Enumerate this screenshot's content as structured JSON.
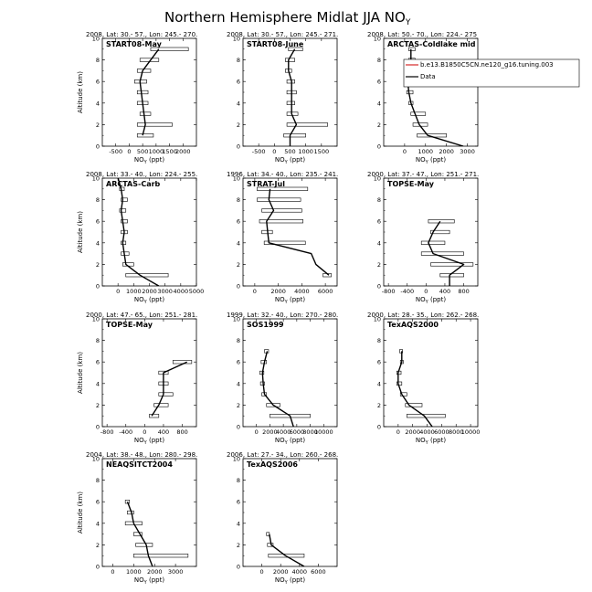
{
  "figure": {
    "title_main": "Northern Hemisphere Midlat JJA NO",
    "title_sub": "Y"
  },
  "legend": {
    "model_label": "b.e13.B1850C5CN.ne120_g16.tuning.003",
    "data_label": "Data",
    "model_color": "#d62728",
    "data_color": "#000000"
  },
  "axis_labels": {
    "y_label": "Altitude (km)",
    "x_label_main": "NO",
    "x_label_sub": "Y",
    "x_label_unit": " (ppt)"
  },
  "chart_data": [
    {
      "type": "line",
      "header": "2008, Lat:  30.- 57., Lon: 245.- 270.",
      "title": "START08-May",
      "xlim": [
        -1000,
        2500
      ],
      "xticks": [
        -500,
        0,
        500,
        1000,
        1500,
        2000
      ],
      "ylim": [
        0,
        10
      ],
      "yticks": [
        0,
        2,
        4,
        6,
        8,
        10
      ],
      "alt": [
        1,
        2,
        3,
        4,
        5,
        6,
        7,
        8,
        9
      ],
      "mean": [
        500,
        600,
        550,
        500,
        450,
        400,
        500,
        800,
        1100
      ],
      "bar_lo": [
        300,
        300,
        400,
        300,
        300,
        200,
        300,
        400,
        800
      ],
      "bar_hi": [
        900,
        1600,
        800,
        700,
        700,
        650,
        800,
        1100,
        2200
      ]
    },
    {
      "type": "line",
      "header": "2008, Lat:  30.- 57., Lon: 245.- 271.",
      "title": "START08-June",
      "xlim": [
        -1000,
        2000
      ],
      "xticks": [
        -500,
        0,
        500,
        1000,
        1500
      ],
      "ylim": [
        0,
        10
      ],
      "yticks": [
        0,
        2,
        4,
        6,
        8,
        10
      ],
      "alt": [
        0,
        1,
        2,
        3,
        4,
        5,
        6,
        7,
        8,
        9
      ],
      "mean": [
        500,
        500,
        700,
        550,
        550,
        550,
        550,
        450,
        450,
        650
      ],
      "bar_lo": [
        null,
        300,
        400,
        400,
        400,
        400,
        400,
        350,
        350,
        450
      ],
      "bar_hi": [
        null,
        1000,
        1700,
        750,
        650,
        700,
        650,
        550,
        650,
        900
      ]
    },
    {
      "type": "line",
      "header": "2008, Lat:  50.- 70., Lon: 224.- 275",
      "title": "ARCTAS-Coldlake mid",
      "xlim": [
        -1000,
        3500
      ],
      "xticks": [
        0,
        1000,
        2000,
        3000
      ],
      "ylim": [
        0,
        10
      ],
      "yticks": [
        0,
        2,
        4,
        6,
        8,
        10
      ],
      "alt": [
        0,
        1,
        2,
        3,
        4,
        5,
        6,
        7,
        8,
        9
      ],
      "mean": [
        2800,
        1100,
        700,
        500,
        300,
        200,
        150,
        200,
        300,
        300
      ],
      "bar_lo": [
        null,
        600,
        400,
        300,
        200,
        100,
        100,
        100,
        200,
        200
      ],
      "bar_hi": [
        null,
        2000,
        1100,
        1000,
        400,
        400,
        300,
        400,
        500,
        500
      ]
    },
    {
      "type": "line",
      "header": "2008, Lat:  33.- 40., Lon: 224.- 255.",
      "title": "ARCTAS-Carb",
      "xlim": [
        -1000,
        5000
      ],
      "xticks": [
        0,
        1000,
        2000,
        3000,
        4000,
        5000
      ],
      "ylim": [
        0,
        10
      ],
      "yticks": [
        0,
        2,
        4,
        6,
        8,
        10
      ],
      "alt": [
        0,
        1,
        2,
        3,
        4,
        5,
        6,
        7,
        8,
        9,
        10
      ],
      "mean": [
        2600,
        1400,
        500,
        400,
        300,
        400,
        300,
        200,
        300,
        200,
        0
      ],
      "bar_lo": [
        null,
        500,
        300,
        200,
        200,
        200,
        200,
        100,
        200,
        100,
        null
      ],
      "bar_hi": [
        null,
        3200,
        1000,
        700,
        500,
        600,
        600,
        500,
        600,
        400,
        null
      ]
    },
    {
      "type": "line",
      "header": "1996, Lat:  34.- 40., Lon: 235.- 241.",
      "title": "STRAT-Jul",
      "xlim": [
        -1000,
        7000
      ],
      "xticks": [
        0,
        2000,
        4000,
        6000
      ],
      "ylim": [
        0,
        10
      ],
      "yticks": [
        0,
        2,
        4,
        6,
        8,
        10
      ],
      "alt": [
        1,
        2,
        3,
        4,
        5,
        6,
        7,
        8,
        9
      ],
      "mean": [
        6300,
        5200,
        4800,
        1200,
        1100,
        1000,
        1600,
        1200,
        1300
      ],
      "bar_lo": [
        5800,
        null,
        null,
        800,
        600,
        400,
        600,
        200,
        200
      ],
      "bar_hi": [
        6500,
        null,
        null,
        4300,
        1500,
        4100,
        4000,
        3900,
        4500
      ]
    },
    {
      "type": "line",
      "header": "2000, Lat:  37.- 47., Lon: 251.- 271.",
      "title": "TOPSE-May",
      "xlim": [
        -900,
        1100
      ],
      "xticks": [
        -800,
        -400,
        0,
        400,
        800
      ],
      "ylim": [
        0,
        10
      ],
      "yticks": [
        0,
        2,
        4,
        6,
        8,
        10
      ],
      "alt": [
        0,
        1,
        2,
        3,
        4,
        5,
        6
      ],
      "mean": [
        500,
        500,
        800,
        150,
        50,
        150,
        300
      ],
      "bar_lo": [
        null,
        300,
        100,
        -100,
        -100,
        100,
        50
      ],
      "bar_hi": [
        null,
        800,
        1000,
        800,
        400,
        500,
        600
      ]
    },
    {
      "type": "line",
      "header": "2000, Lat:  47.- 65., Lon: 251.- 281.",
      "title": "TOPSE-May",
      "xlim": [
        -900,
        1100
      ],
      "xticks": [
        -800,
        -400,
        0,
        400,
        800
      ],
      "ylim": [
        0,
        10
      ],
      "yticks": [
        0,
        2,
        4,
        6,
        8,
        10
      ],
      "alt": [
        1,
        2,
        3,
        4,
        5,
        6
      ],
      "mean": [
        150,
        300,
        400,
        400,
        400,
        900
      ],
      "bar_lo": [
        100,
        200,
        300,
        300,
        300,
        600
      ],
      "bar_hi": [
        300,
        500,
        600,
        500,
        500,
        1000
      ]
    },
    {
      "type": "line",
      "header": "1999, Lat:  32.- 40., Lon: 270.- 280.",
      "title": "SOS1999",
      "xlim": [
        -2000,
        12000
      ],
      "xticks": [
        0,
        2000,
        4000,
        6000,
        8000,
        10000
      ],
      "ylim": [
        0,
        10
      ],
      "yticks": [
        0,
        2,
        4,
        6,
        8,
        10
      ],
      "alt": [
        0,
        1,
        2,
        3,
        4,
        5,
        6,
        7
      ],
      "mean": [
        5500,
        5000,
        2500,
        1200,
        1000,
        900,
        1200,
        1600
      ],
      "bar_lo": [
        null,
        2000,
        1500,
        800,
        600,
        500,
        700,
        1200
      ],
      "bar_hi": [
        null,
        8000,
        3500,
        1500,
        1200,
        1100,
        1500,
        1800
      ]
    },
    {
      "type": "line",
      "header": "2000, Lat:  28.- 35., Lon: 262.- 268.",
      "title": "TexAQS2000",
      "xlim": [
        -2000,
        11000
      ],
      "xticks": [
        0,
        2000,
        4000,
        6000,
        8000,
        10000
      ],
      "ylim": [
        0,
        10
      ],
      "yticks": [
        0,
        2,
        4,
        6,
        8,
        10
      ],
      "alt": [
        0,
        1,
        2,
        3,
        4,
        5,
        6,
        7
      ],
      "mean": [
        4700,
        3600,
        1500,
        500,
        0,
        0,
        500,
        500
      ],
      "bar_lo": [
        null,
        1200,
        1000,
        300,
        -200,
        -200,
        300,
        200
      ],
      "bar_hi": [
        null,
        6500,
        3300,
        1200,
        500,
        400,
        700,
        600
      ]
    },
    {
      "type": "line",
      "header": "2004, Lat:  38.- 48., Lon: 280.- 298.",
      "title": "NEAQSITCT2004",
      "xlim": [
        -500,
        4000
      ],
      "xticks": [
        0,
        1000,
        2000,
        3000
      ],
      "ylim": [
        0,
        10
      ],
      "yticks": [
        0,
        2,
        4,
        6,
        8,
        10
      ],
      "alt": [
        0,
        1,
        2,
        3,
        4,
        5,
        6
      ],
      "mean": [
        1900,
        1700,
        1600,
        1300,
        1000,
        900,
        700
      ],
      "bar_lo": [
        null,
        1000,
        1100,
        1000,
        600,
        700,
        600
      ],
      "bar_hi": [
        null,
        3600,
        1900,
        1400,
        1400,
        1000,
        800
      ]
    },
    {
      "type": "line",
      "header": "2006, Lat:  27.- 34., Lon: 260.- 268.",
      "title": "TexAQS2006",
      "xlim": [
        -2000,
        8000
      ],
      "xticks": [
        0,
        2000,
        4000,
        6000
      ],
      "ylim": [
        0,
        10
      ],
      "yticks": [
        0,
        2,
        4,
        6,
        8,
        10
      ],
      "alt": [
        0,
        1,
        2,
        3
      ],
      "mean": [
        4500,
        2500,
        1000,
        800
      ],
      "bar_lo": [
        null,
        700,
        600,
        500
      ],
      "bar_hi": [
        null,
        4500,
        1200,
        800
      ]
    }
  ]
}
